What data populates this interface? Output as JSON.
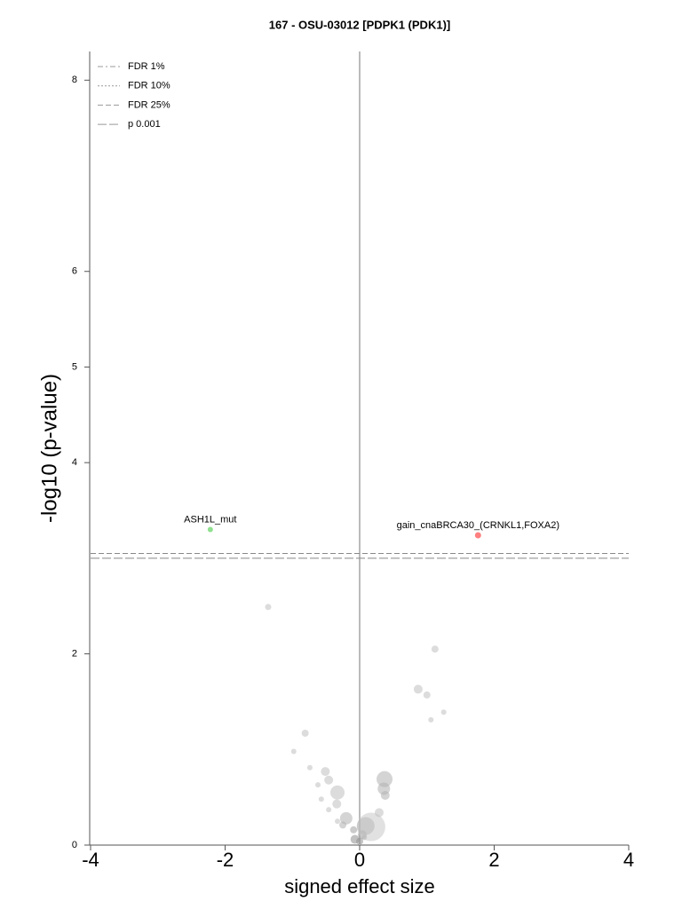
{
  "chart_data": {
    "type": "scatter",
    "title": "167 - OSU-03012 [PDPK1 (PDK1)]",
    "x_label": "signed effect size",
    "y_label": "-log10 (p-value)",
    "xlim": [
      -4,
      4
    ],
    "xticks": [
      -4,
      -2,
      0,
      2,
      4
    ],
    "ylim": [
      0,
      8.3
    ],
    "yticks": [
      0,
      2,
      4,
      5,
      6,
      8
    ],
    "zero_line": true,
    "opacity": 0.55,
    "lines": [
      {
        "name": "FDR 1%",
        "dash": "dashdot"
      },
      {
        "name": "FDR 10%",
        "dash": "dotted"
      },
      {
        "name": "FDR 25%",
        "dash": "dashed",
        "value": 3.05
      },
      {
        "name": "p 0.001",
        "dash": "longdash",
        "value": 3.0
      }
    ],
    "points": {
      "x": [
        -2.22,
        1.76,
        -1.36,
        1.12,
        0.87,
        1.0,
        1.25,
        1.06,
        -0.81,
        -0.98,
        -0.74,
        -0.51,
        -0.46,
        -0.62,
        0.37,
        0.36,
        0.38,
        -0.33,
        -0.57,
        -0.34,
        -0.46,
        0.29,
        -0.2,
        -0.33,
        -0.25,
        0.17,
        0.09,
        -0.09,
        0.04,
        -0.07,
        0.0,
        0.07
      ],
      "values": [
        3.3,
        3.24,
        2.49,
        2.05,
        1.63,
        1.57,
        1.39,
        1.31,
        1.17,
        0.98,
        0.81,
        0.77,
        0.68,
        0.63,
        0.69,
        0.59,
        0.52,
        0.55,
        0.48,
        0.43,
        0.37,
        0.34,
        0.28,
        0.25,
        0.21,
        0.19,
        0.2,
        0.16,
        0.11,
        0.06,
        0.04,
        0.08
      ],
      "sizes": [
        3,
        3.5,
        3.5,
        4,
        5,
        4,
        3,
        3,
        4,
        3,
        3,
        5,
        5,
        3,
        9,
        7,
        5,
        8,
        3,
        5,
        3,
        5,
        7,
        3,
        4,
        16,
        10,
        4,
        5,
        5,
        4,
        3
      ],
      "colors": [
        "#8fe08f",
        "#ff8080",
        "#c0c0c0",
        "#c0c0c0",
        "#c0c0c0",
        "#c0c0c0",
        "#c0c0c0",
        "#c0c0c0",
        "#c0c0c0",
        "#c0c0c0",
        "#c0c0c0",
        "#c0c0c0",
        "#c0c0c0",
        "#c0c0c0",
        "#b0b0b0",
        "#b0b0b0",
        "#b0b0b0",
        "#c0c0c0",
        "#c0c0c0",
        "#c0c0c0",
        "#c0c0c0",
        "#c0c0c0",
        "#b0b0b0",
        "#c0c0c0",
        "#b0b0b0",
        "#c8c8c8",
        "#a8a8a8",
        "#a0a0a0",
        "#a0a0a0",
        "#909090",
        "#909090",
        "#a0a0a0"
      ],
      "point_labels": [
        "ASH1L_mut",
        "gain_cnaBRCA30_(CRNKL1,FOXA2)",
        null,
        null,
        null,
        null,
        null,
        null,
        null,
        null,
        null,
        null,
        null,
        null,
        null,
        null,
        null,
        null,
        null,
        null,
        null,
        null,
        null,
        null,
        null,
        null,
        null,
        null,
        null,
        null,
        null,
        null
      ]
    }
  }
}
